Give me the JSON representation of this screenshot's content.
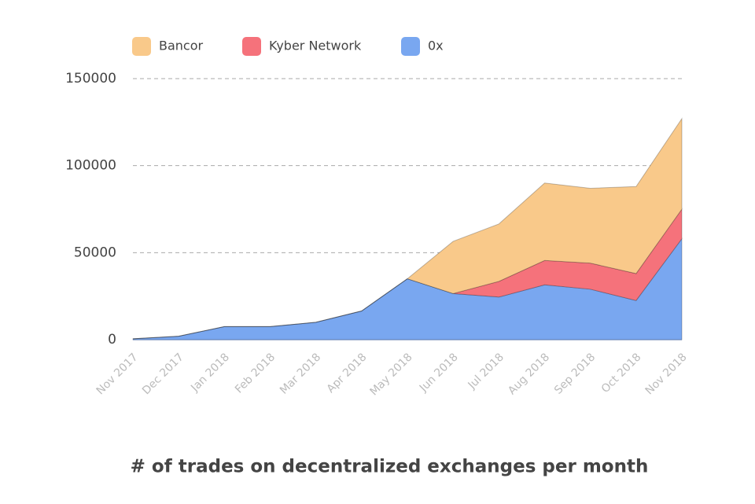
{
  "chart_data": {
    "type": "stacked_area",
    "title": "# of trades on decentralized exchanges per month",
    "categories": [
      "Nov 2017",
      "Dec 2017",
      "Jan 2018",
      "Feb 2018",
      "Mar 2018",
      "Apr 2018",
      "May 2018",
      "Jun 2018",
      "Jul 2018",
      "Aug 2018",
      "Sep 2018",
      "Oct 2018",
      "Nov 2018"
    ],
    "series": [
      {
        "name": "Bancor",
        "color": "#f9c98a",
        "values": [
          0,
          0,
          0,
          0,
          0,
          0,
          0,
          30000,
          33000,
          44500,
          43000,
          50000,
          52000
        ]
      },
      {
        "name": "Kyber Network",
        "color": "#f5727b",
        "values": [
          0,
          0,
          0,
          0,
          0,
          0,
          0,
          0,
          9000,
          14000,
          15000,
          15500,
          17000
        ]
      },
      {
        "name": "0x",
        "color": "#79a7f0",
        "values": [
          500,
          2000,
          7500,
          7500,
          10000,
          16500,
          35000,
          26500,
          24500,
          31500,
          29000,
          22500,
          58000
        ]
      }
    ],
    "ylim": [
      0,
      150000
    ],
    "yticks": [
      0,
      50000,
      100000,
      150000
    ],
    "grid": true,
    "legend": "top"
  }
}
